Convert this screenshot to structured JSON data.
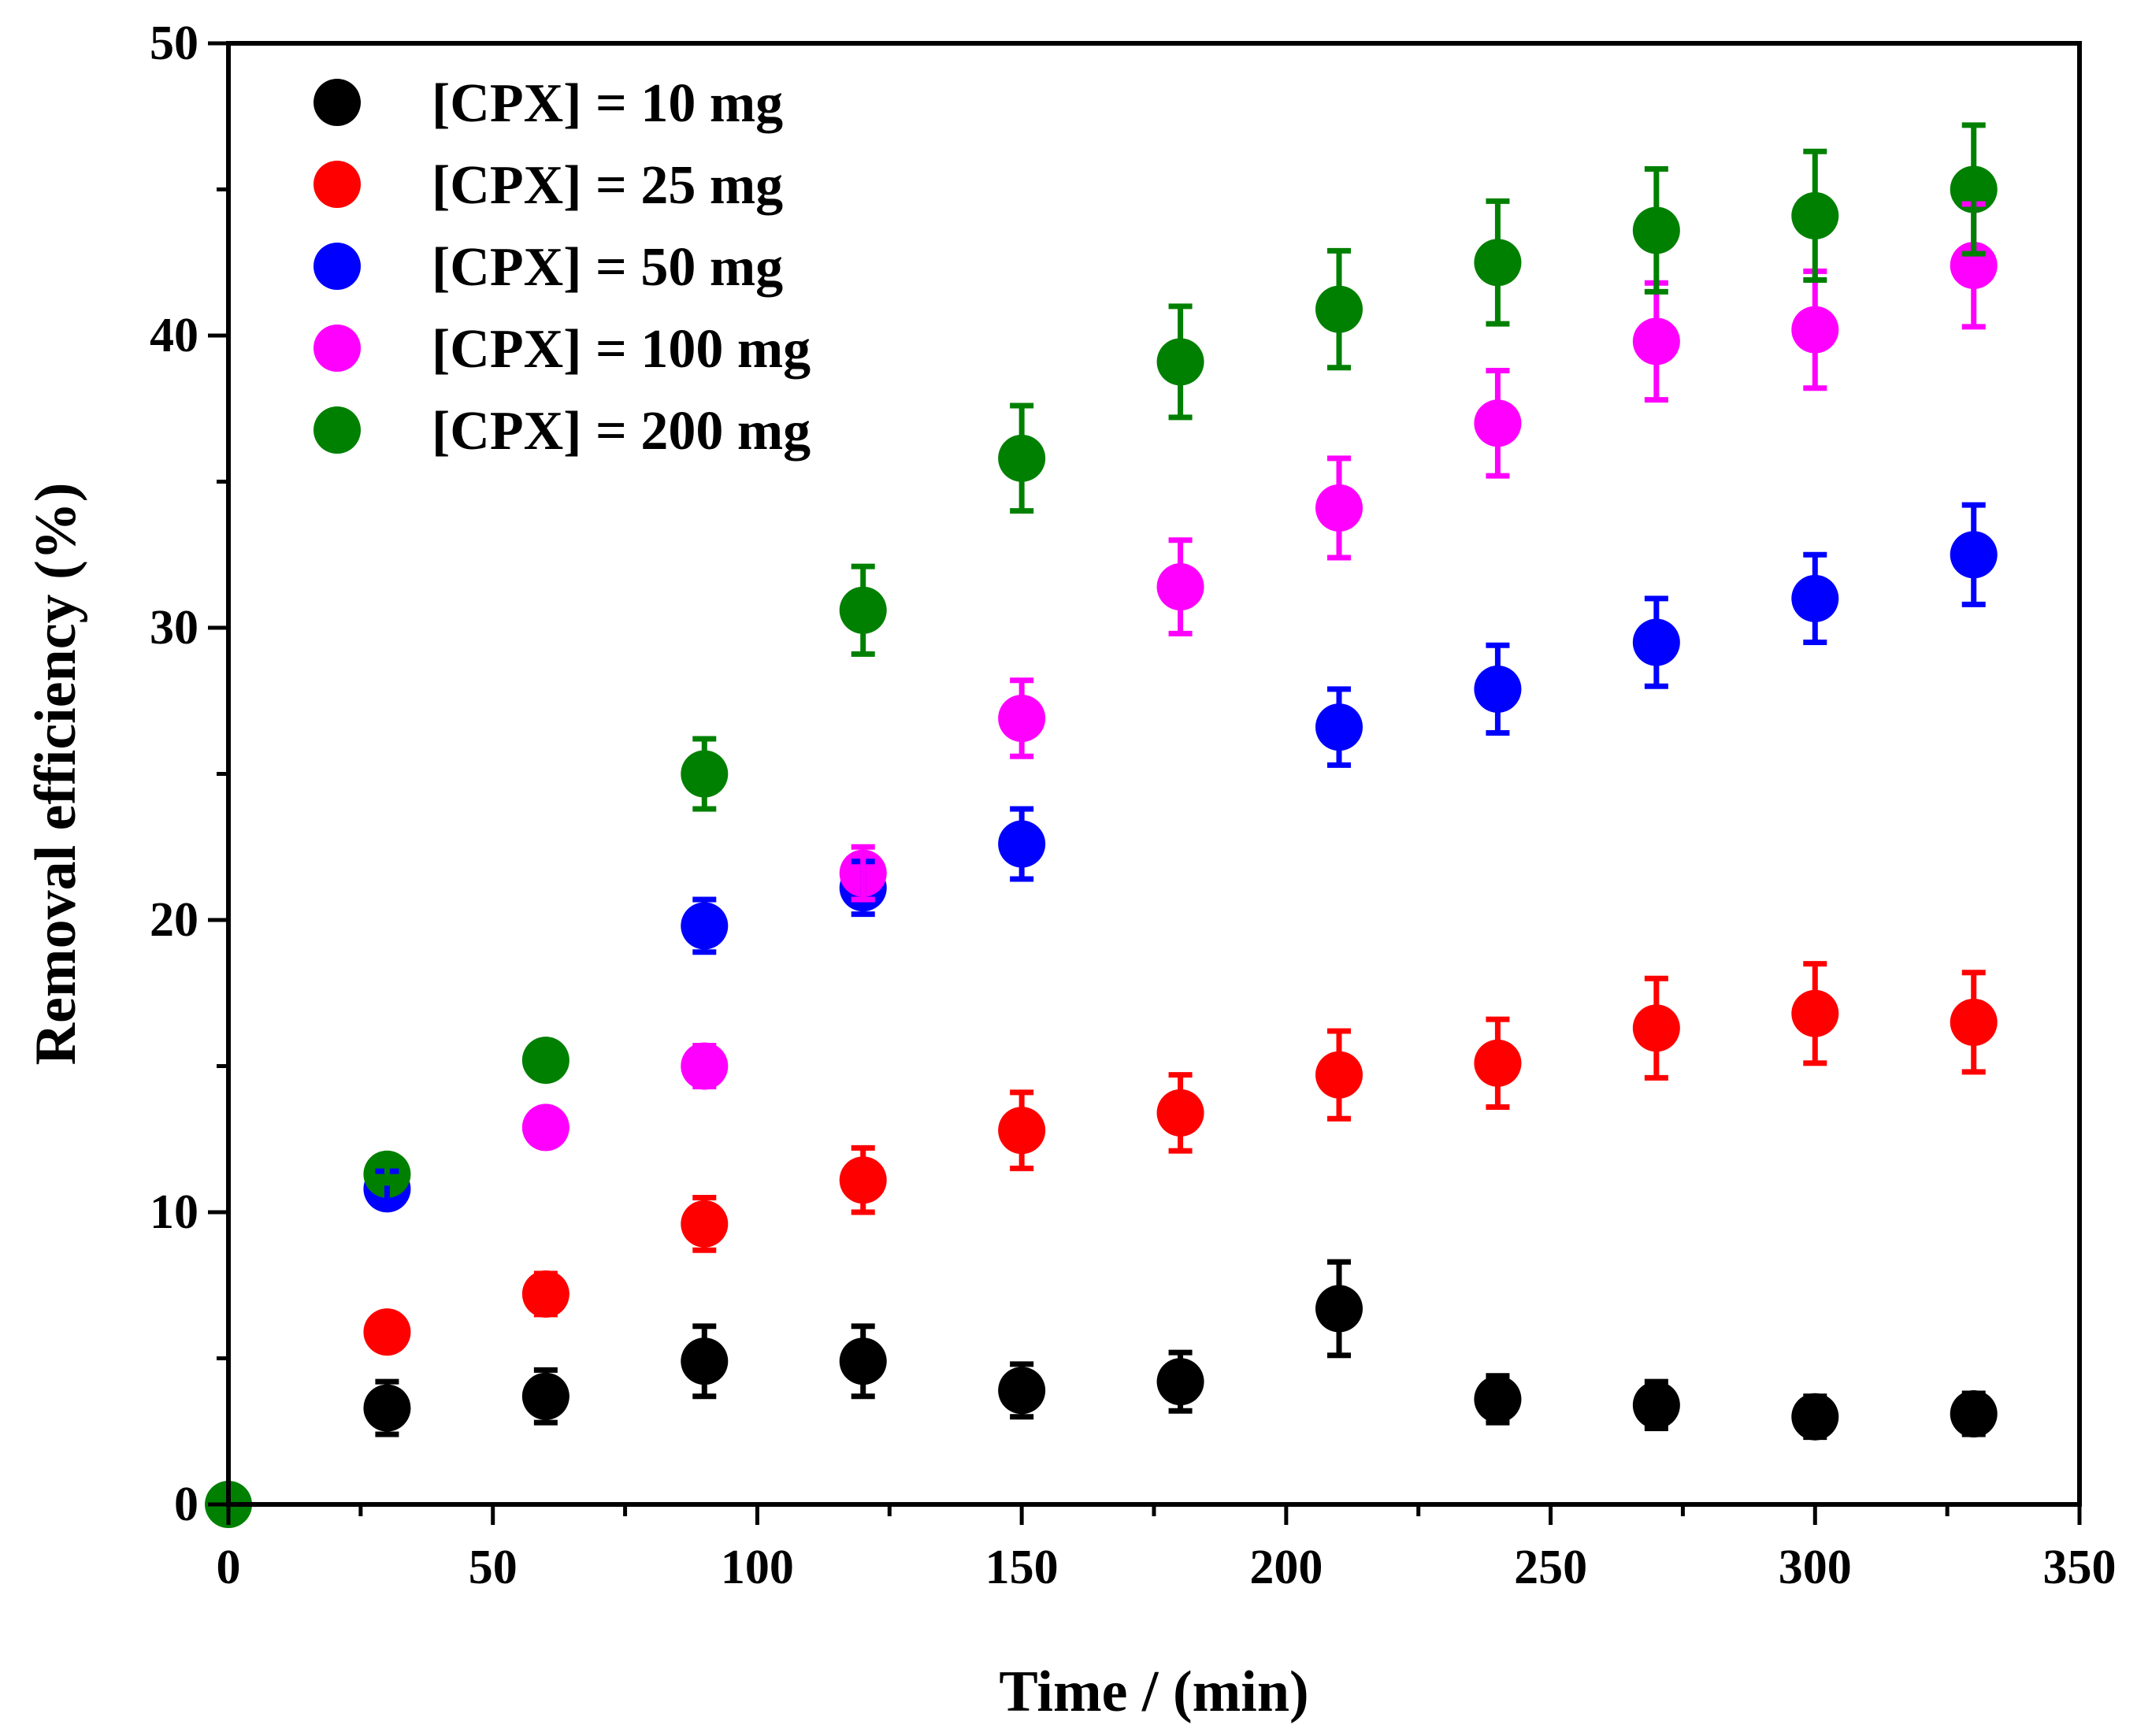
{
  "chart_data": {
    "type": "scatter",
    "title": "",
    "xlabel": "Time / (min)",
    "ylabel": "Removal efficiency (%)",
    "xlim": [
      0,
      350
    ],
    "ylim": [
      0,
      50
    ],
    "xticks": [
      0,
      50,
      100,
      150,
      200,
      250,
      300,
      350
    ],
    "yticks": [
      0,
      10,
      20,
      30,
      40,
      50
    ],
    "grid": false,
    "legend_position": "top-left",
    "series": [
      {
        "name": "[CPX] = 10 mg",
        "color": "#000000",
        "points": [
          {
            "x": 30,
            "y": 3.3,
            "err": 0.9
          },
          {
            "x": 60,
            "y": 3.7,
            "err": 0.9
          },
          {
            "x": 90,
            "y": 4.9,
            "err": 1.2
          },
          {
            "x": 120,
            "y": 4.9,
            "err": 1.2
          },
          {
            "x": 150,
            "y": 3.9,
            "err": 0.9
          },
          {
            "x": 180,
            "y": 4.2,
            "err": 1.0
          },
          {
            "x": 210,
            "y": 6.7,
            "err": 1.6
          },
          {
            "x": 240,
            "y": 3.6,
            "err": 0.8
          },
          {
            "x": 270,
            "y": 3.4,
            "err": 0.8
          },
          {
            "x": 300,
            "y": 3.0,
            "err": 0.7
          },
          {
            "x": 330,
            "y": 3.1,
            "err": 0.7
          }
        ]
      },
      {
        "name": "[CPX] = 25 mg",
        "color": "#ff0000",
        "points": [
          {
            "x": 30,
            "y": 5.9,
            "err": 0.4
          },
          {
            "x": 60,
            "y": 7.2,
            "err": 0.7
          },
          {
            "x": 90,
            "y": 9.6,
            "err": 0.9
          },
          {
            "x": 120,
            "y": 11.1,
            "err": 1.1
          },
          {
            "x": 150,
            "y": 12.8,
            "err": 1.3
          },
          {
            "x": 180,
            "y": 13.4,
            "err": 1.3
          },
          {
            "x": 210,
            "y": 14.7,
            "err": 1.5
          },
          {
            "x": 240,
            "y": 15.1,
            "err": 1.5
          },
          {
            "x": 270,
            "y": 16.3,
            "err": 1.7
          },
          {
            "x": 300,
            "y": 16.8,
            "err": 1.7
          },
          {
            "x": 330,
            "y": 16.5,
            "err": 1.7
          }
        ]
      },
      {
        "name": "[CPX] = 50 mg",
        "color": "#0000ff",
        "points": [
          {
            "x": 30,
            "y": 10.8,
            "err": 0.6
          },
          {
            "x": 90,
            "y": 19.8,
            "err": 0.9
          },
          {
            "x": 120,
            "y": 21.1,
            "err": 0.9
          },
          {
            "x": 150,
            "y": 22.6,
            "err": 1.2
          },
          {
            "x": 210,
            "y": 26.6,
            "err": 1.3
          },
          {
            "x": 240,
            "y": 27.9,
            "err": 1.5
          },
          {
            "x": 270,
            "y": 29.5,
            "err": 1.5
          },
          {
            "x": 300,
            "y": 31.0,
            "err": 1.5
          },
          {
            "x": 330,
            "y": 32.5,
            "err": 1.7
          }
        ]
      },
      {
        "name": "[CPX] = 100 mg",
        "color": "#ff00ff",
        "points": [
          {
            "x": 60,
            "y": 12.9,
            "err": 0.5
          },
          {
            "x": 90,
            "y": 15.0,
            "err": 0.7
          },
          {
            "x": 120,
            "y": 21.6,
            "err": 0.9
          },
          {
            "x": 150,
            "y": 26.9,
            "err": 1.3
          },
          {
            "x": 180,
            "y": 31.4,
            "err": 1.6
          },
          {
            "x": 210,
            "y": 34.1,
            "err": 1.7
          },
          {
            "x": 240,
            "y": 37.0,
            "err": 1.8
          },
          {
            "x": 270,
            "y": 39.8,
            "err": 2.0
          },
          {
            "x": 300,
            "y": 40.2,
            "err": 2.0
          },
          {
            "x": 330,
            "y": 42.4,
            "err": 2.1
          }
        ]
      },
      {
        "name": "[CPX] = 200 mg",
        "color": "#008000",
        "points": [
          {
            "x": 0,
            "y": 0.0,
            "err": 0
          },
          {
            "x": 30,
            "y": 11.3,
            "err": 0.3
          },
          {
            "x": 60,
            "y": 15.2,
            "err": 0.6
          },
          {
            "x": 90,
            "y": 25.0,
            "err": 1.2
          },
          {
            "x": 120,
            "y": 30.6,
            "err": 1.5
          },
          {
            "x": 150,
            "y": 35.8,
            "err": 1.8
          },
          {
            "x": 180,
            "y": 39.1,
            "err": 1.9
          },
          {
            "x": 210,
            "y": 40.9,
            "err": 2.0
          },
          {
            "x": 240,
            "y": 42.5,
            "err": 2.1
          },
          {
            "x": 270,
            "y": 43.6,
            "err": 2.1
          },
          {
            "x": 300,
            "y": 44.1,
            "err": 2.2
          },
          {
            "x": 330,
            "y": 45.0,
            "err": 2.2
          }
        ]
      }
    ]
  }
}
